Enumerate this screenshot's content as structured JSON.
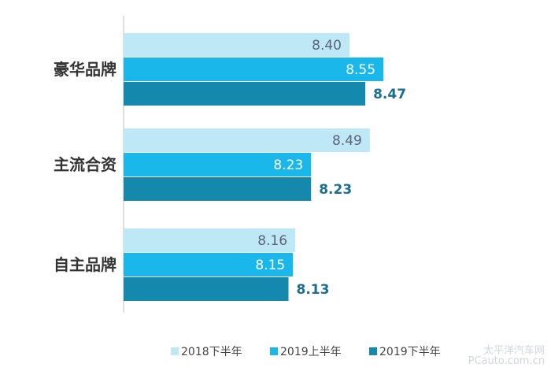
{
  "chart_data": {
    "type": "bar",
    "orientation": "horizontal",
    "categories": [
      "豪华品牌",
      "主流合资",
      "自主品牌"
    ],
    "series": [
      {
        "name": "2018下半年",
        "values": [
          8.4,
          8.49,
          8.16
        ],
        "color": "#bfe8f6",
        "label_color": "#5a6478",
        "label_bold": false
      },
      {
        "name": "2019上半年",
        "values": [
          8.55,
          8.23,
          8.15
        ],
        "color": "#1ab8ea",
        "label_color": "#ffffff",
        "label_bold": false
      },
      {
        "name": "2019下半年",
        "values": [
          8.47,
          8.23,
          8.13
        ],
        "color": "#1488ad",
        "label_color": "#1a6e8f",
        "label_bold": true
      }
    ],
    "value_labels": [
      [
        "8.40",
        "8.49",
        "8.16"
      ],
      [
        "8.55",
        "8.23",
        "8.15"
      ],
      [
        "8.47",
        "8.23",
        "8.13"
      ]
    ],
    "grid": false,
    "legend_position": "bottom-right"
  },
  "watermark": {
    "line1": "太平洋汽车网",
    "line2": "PCauto.com.cn"
  }
}
